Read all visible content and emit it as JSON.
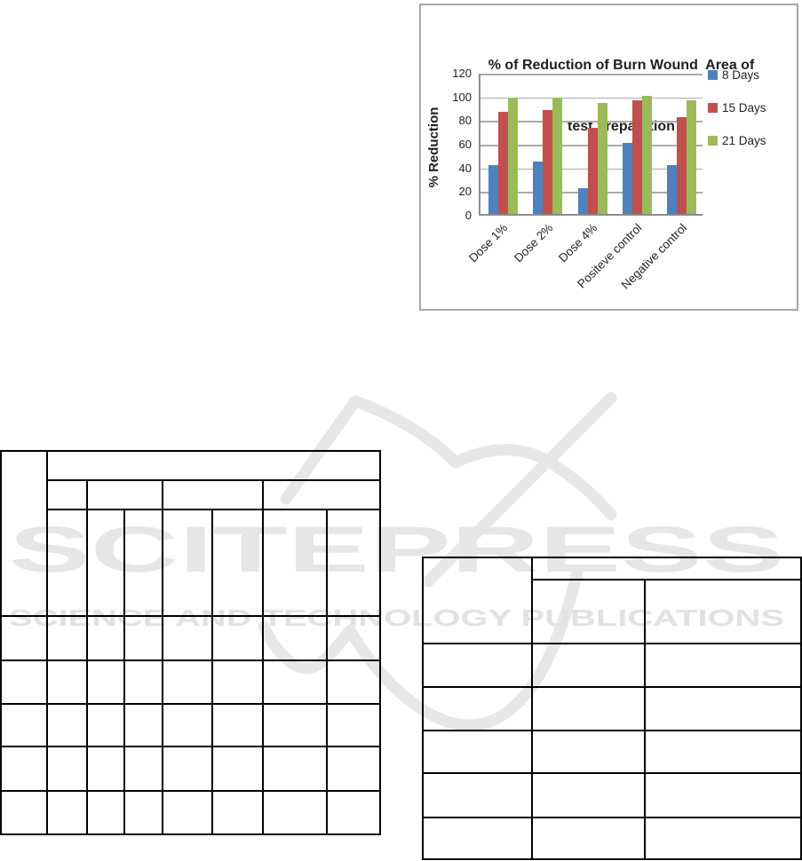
{
  "chart": {
    "title_line1": "% of Reduction of Burn Wound  Area of",
    "title_line2": "test preparation"
  },
  "chart_data": {
    "type": "bar",
    "title": "% of Reduction of Burn Wound Area of test preparation",
    "xlabel": "",
    "ylabel": "% Reduction",
    "ylim": [
      0,
      120
    ],
    "yticks": [
      0,
      20,
      40,
      60,
      80,
      100,
      120
    ],
    "grid": true,
    "legend_position": "right",
    "categories": [
      "Dose 1%",
      "Dose 2%",
      "Dose 4%",
      "Positeve control",
      "Negative control"
    ],
    "series": [
      {
        "name": "8 Days",
        "color": "#4F81BD",
        "values": [
          41,
          44,
          22,
          60,
          41
        ]
      },
      {
        "name": "15 Days",
        "color": "#C0504D",
        "values": [
          86,
          88,
          73,
          96,
          82
        ]
      },
      {
        "name": "21 Days",
        "color": "#9BBB59",
        "values": [
          98,
          98,
          94,
          100,
          96
        ]
      }
    ]
  },
  "watermark": {
    "brand": "SCITEPRESS",
    "tagline": "SCIENCE AND TECHNOLOGY PUBLICATIONS",
    "brand_color": "#E6E6E6",
    "tagline_color": "#E2E2E2",
    "logo_color": "#E7E7E7"
  },
  "colors": {
    "chart_border": "#A6A6A6",
    "gridline": "#ABABAB",
    "axis_line": "#8C8C8C",
    "table_border": "#000000"
  }
}
